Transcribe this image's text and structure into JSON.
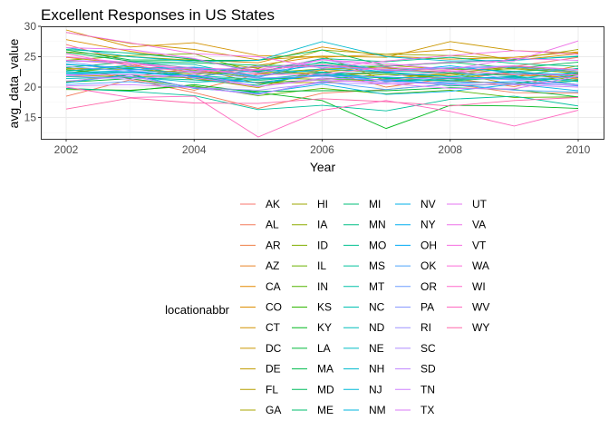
{
  "chart_data": {
    "type": "line",
    "title": "Excellent Responses in US States",
    "xlabel": "Year",
    "ylabel": "avg_data_value",
    "xlim": [
      2002,
      2010
    ],
    "ylim": [
      11.5,
      30
    ],
    "x_ticks": [
      2002,
      2004,
      2006,
      2008,
      2010
    ],
    "y_ticks": [
      15,
      20,
      25,
      30
    ],
    "x": [
      2002,
      2003,
      2004,
      2005,
      2006,
      2007,
      2008,
      2009,
      2010
    ],
    "grid": true,
    "legend": {
      "title": "locationabbr",
      "position": "bottom",
      "columns": 5
    },
    "series": [
      {
        "name": "AK",
        "color": "#F8766D",
        "values": [
          27.0,
          24.1,
          22.3,
          23.3,
          23.5,
          23.1,
          22.2,
          23.4,
          24.9
        ]
      },
      {
        "name": "AL",
        "color": "#F47B5B",
        "values": [
          18.5,
          21.2,
          19.1,
          16.5,
          19.0,
          19.6,
          20.5,
          19.1,
          19.0
        ]
      },
      {
        "name": "AR",
        "color": "#EF7F47",
        "values": [
          23.1,
          21.4,
          19.5,
          22.1,
          22.8,
          20.0,
          21.5,
          20.1,
          22.3
        ]
      },
      {
        "name": "AZ",
        "color": "#E98429",
        "values": [
          22.7,
          23.6,
          21.2,
          20.8,
          21.9,
          22.5,
          21.0,
          22.6,
          21.3
        ]
      },
      {
        "name": "CA",
        "color": "#E38900",
        "values": [
          24.9,
          23.8,
          21.6,
          23.6,
          25.1,
          21.0,
          22.2,
          22.0,
          21.5
        ]
      },
      {
        "name": "CO",
        "color": "#DC8D00",
        "values": [
          27.8,
          25.9,
          24.5,
          24.0,
          26.6,
          25.1,
          24.6,
          24.9,
          25.8
        ]
      },
      {
        "name": "CT",
        "color": "#D39200",
        "values": [
          29.4,
          26.6,
          27.3,
          25.2,
          24.9,
          25.4,
          26.2,
          24.4,
          25.5
        ]
      },
      {
        "name": "DC",
        "color": "#CA9700",
        "values": [
          29.0,
          27.2,
          26.2,
          24.5,
          25.1,
          24.9,
          27.5,
          26.0,
          25.6
        ]
      },
      {
        "name": "DE",
        "color": "#C09B00",
        "values": [
          20.9,
          22.1,
          21.5,
          19.9,
          22.9,
          22.4,
          21.4,
          21.6,
          23.5
        ]
      },
      {
        "name": "FL",
        "color": "#B59F00",
        "values": [
          22.0,
          21.7,
          23.1,
          20.6,
          20.8,
          21.3,
          22.4,
          20.4,
          21.1
        ]
      },
      {
        "name": "GA",
        "color": "#A9A400",
        "values": [
          23.1,
          22.9,
          22.4,
          22.2,
          22.4,
          23.6,
          22.9,
          23.0,
          22.3
        ]
      },
      {
        "name": "HI",
        "color": "#9CA700",
        "values": [
          25.8,
          25.0,
          24.4,
          23.1,
          26.1,
          25.4,
          25.2,
          24.6,
          26.2
        ]
      },
      {
        "name": "IA",
        "color": "#8EAB00",
        "values": [
          23.7,
          23.0,
          22.1,
          23.0,
          21.9,
          22.3,
          21.9,
          23.2,
          22.2
        ]
      },
      {
        "name": "ID",
        "color": "#7FAE00",
        "values": [
          24.4,
          25.2,
          25.5,
          22.3,
          23.0,
          23.2,
          22.3,
          23.4,
          22.5
        ]
      },
      {
        "name": "IL",
        "color": "#6BB100",
        "values": [
          22.3,
          23.4,
          22.8,
          21.5,
          21.3,
          22.1,
          21.5,
          22.4,
          21.1
        ]
      },
      {
        "name": "IN",
        "color": "#53B400",
        "values": [
          19.6,
          19.5,
          20.2,
          18.6,
          19.8,
          18.9,
          19.5,
          18.3,
          18.4
        ]
      },
      {
        "name": "KS",
        "color": "#2EB600",
        "values": [
          22.9,
          21.7,
          21.6,
          20.7,
          21.2,
          21.3,
          21.0,
          20.6,
          22.0
        ]
      },
      {
        "name": "KY",
        "color": "#00B81F",
        "values": [
          19.8,
          19.4,
          20.4,
          19.1,
          17.8,
          13.2,
          17.0,
          16.9,
          16.5
        ]
      },
      {
        "name": "LA",
        "color": "#00B93B",
        "values": [
          20.8,
          21.4,
          20.0,
          19.3,
          19.4,
          19.4,
          19.9,
          19.6,
          18.4
        ]
      },
      {
        "name": "MA",
        "color": "#00BB4E",
        "values": [
          26.1,
          24.5,
          24.4,
          24.4,
          26.1,
          23.5,
          24.0,
          24.5,
          25.0
        ]
      },
      {
        "name": "MD",
        "color": "#00BC5E",
        "values": [
          25.7,
          24.3,
          24.0,
          23.6,
          23.5,
          23.4,
          24.1,
          23.1,
          24.1
        ]
      },
      {
        "name": "ME",
        "color": "#00BD6C",
        "values": [
          23.2,
          24.2,
          23.1,
          22.6,
          24.0,
          22.7,
          23.1,
          22.6,
          23.0
        ]
      },
      {
        "name": "MI",
        "color": "#00BE79",
        "values": [
          22.7,
          23.1,
          21.7,
          21.1,
          22.0,
          21.5,
          21.0,
          21.7,
          20.4
        ]
      },
      {
        "name": "MN",
        "color": "#00BF85",
        "values": [
          26.2,
          25.6,
          24.6,
          22.5,
          24.7,
          24.2,
          24.9,
          23.9,
          23.4
        ]
      },
      {
        "name": "MO",
        "color": "#00C091",
        "values": [
          21.7,
          21.6,
          21.2,
          20.3,
          22.5,
          21.4,
          20.2,
          20.5,
          21.0
        ]
      },
      {
        "name": "MS",
        "color": "#00C09C",
        "values": [
          19.8,
          19.3,
          18.6,
          16.3,
          17.0,
          16.1,
          18.0,
          18.5,
          16.9
        ]
      },
      {
        "name": "MT",
        "color": "#00C0A7",
        "values": [
          24.3,
          24.1,
          23.7,
          21.6,
          24.2,
          22.7,
          22.3,
          21.9,
          23.1
        ]
      },
      {
        "name": "NC",
        "color": "#00BFB1",
        "values": [
          22.3,
          22.5,
          21.9,
          21.3,
          22.3,
          22.3,
          21.7,
          21.4,
          22.4
        ]
      },
      {
        "name": "ND",
        "color": "#00BEBB",
        "values": [
          22.6,
          23.6,
          21.7,
          22.8,
          22.5,
          21.0,
          21.2,
          21.8,
          20.9
        ]
      },
      {
        "name": "NE",
        "color": "#00BCC5",
        "values": [
          21.4,
          21.7,
          20.8,
          21.3,
          21.9,
          20.8,
          21.5,
          21.3,
          21.2
        ]
      },
      {
        "name": "NH",
        "color": "#00BACE",
        "values": [
          26.5,
          25.0,
          24.2,
          24.4,
          27.5,
          25.0,
          24.3,
          24.4,
          25.1
        ]
      },
      {
        "name": "NJ",
        "color": "#00B8D7",
        "values": [
          23.7,
          23.2,
          23.2,
          21.8,
          23.0,
          22.5,
          21.7,
          22.6,
          21.6
        ]
      },
      {
        "name": "NM",
        "color": "#00B5DF",
        "values": [
          22.4,
          22.7,
          21.5,
          20.7,
          22.1,
          21.6,
          21.5,
          21.6,
          20.4
        ]
      },
      {
        "name": "NV",
        "color": "#00B2E7",
        "values": [
          20.7,
          22.1,
          19.8,
          19.0,
          20.5,
          18.8,
          19.3,
          20.5,
          19.4
        ]
      },
      {
        "name": "NY",
        "color": "#00AEEF",
        "values": [
          23.8,
          22.9,
          23.3,
          22.4,
          23.6,
          22.5,
          23.5,
          22.3,
          22.1
        ]
      },
      {
        "name": "OH",
        "color": "#00A9F5",
        "values": [
          22.1,
          22.4,
          21.8,
          20.7,
          22.1,
          21.1,
          20.6,
          20.9,
          20.2
        ]
      },
      {
        "name": "OK",
        "color": "#4DA4FB",
        "values": [
          20.4,
          20.9,
          19.9,
          18.9,
          20.9,
          19.6,
          20.5,
          19.5,
          19.2
        ]
      },
      {
        "name": "OR",
        "color": "#6E9EFF",
        "values": [
          24.2,
          22.8,
          23.1,
          21.6,
          24.6,
          22.6,
          23.2,
          23.3,
          22.4
        ]
      },
      {
        "name": "PA",
        "color": "#8898FF",
        "values": [
          23.4,
          22.6,
          22.4,
          21.5,
          21.8,
          21.7,
          22.6,
          21.3,
          21.7
        ]
      },
      {
        "name": "RI",
        "color": "#9D92FF",
        "values": [
          24.4,
          24.1,
          22.6,
          23.4,
          23.3,
          22.9,
          23.2,
          23.5,
          22.7
        ]
      },
      {
        "name": "SC",
        "color": "#AF8CFF",
        "values": [
          21.0,
          21.8,
          19.9,
          19.5,
          20.7,
          20.5,
          20.9,
          20.6,
          20.3
        ]
      },
      {
        "name": "SD",
        "color": "#BF86FF",
        "values": [
          21.9,
          21.3,
          22.1,
          20.1,
          21.5,
          21.2,
          21.6,
          21.2,
          20.4
        ]
      },
      {
        "name": "TN",
        "color": "#CE80FF",
        "values": [
          20.2,
          20.4,
          19.9,
          18.8,
          21.0,
          20.9,
          20.4,
          20.4,
          20.0
        ]
      },
      {
        "name": "TX",
        "color": "#DA7BF7",
        "values": [
          22.0,
          22.1,
          21.6,
          20.1,
          21.3,
          20.6,
          19.8,
          19.7,
          21.8
        ]
      },
      {
        "name": "UT",
        "color": "#E476F1",
        "values": [
          26.5,
          26.2,
          24.7,
          22.3,
          24.5,
          23.9,
          22.9,
          24.7,
          24.4
        ]
      },
      {
        "name": "VA",
        "color": "#EE72E8",
        "values": [
          25.0,
          24.0,
          23.1,
          22.9,
          24.5,
          23.5,
          24.1,
          24.3,
          27.6
        ]
      },
      {
        "name": "VT",
        "color": "#F66EE0",
        "values": [
          29.0,
          27.3,
          25.5,
          25.0,
          23.1,
          24.3,
          25.2,
          26.0,
          25.4
        ]
      },
      {
        "name": "WA",
        "color": "#FC6BD6",
        "values": [
          24.4,
          23.8,
          22.9,
          22.1,
          22.1,
          23.3,
          22.7,
          22.1,
          22.0
        ]
      },
      {
        "name": "WI",
        "color": "#FF69CB",
        "values": [
          25.5,
          23.5,
          22.5,
          22.8,
          23.7,
          22.8,
          22.6,
          23.5,
          22.9
        ]
      },
      {
        "name": "WV",
        "color": "#FF67BF",
        "values": [
          20.0,
          18.3,
          18.5,
          11.8,
          16.2,
          17.8,
          16.0,
          13.6,
          16.2
        ]
      },
      {
        "name": "WY",
        "color": "#FF66A9",
        "values": [
          16.4,
          18.2,
          17.4,
          17.3,
          18.1,
          17.6,
          16.9,
          17.8,
          18.3
        ]
      }
    ]
  }
}
